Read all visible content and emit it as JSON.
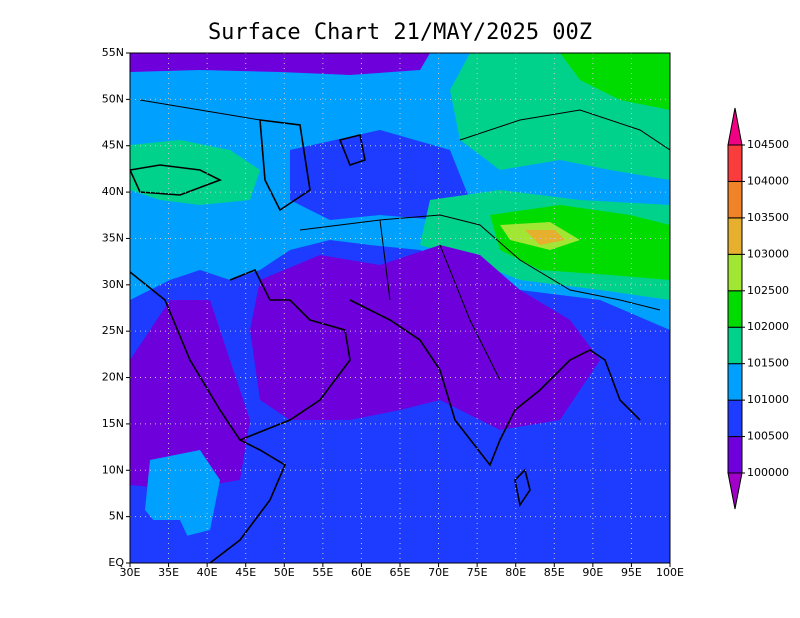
{
  "title": "Surface Chart 21/MAY/2025 00Z",
  "map": {
    "lat_labels": [
      "EQ",
      "5N",
      "10N",
      "15N",
      "20N",
      "25N",
      "30N",
      "35N",
      "40N",
      "45N",
      "50N",
      "55N"
    ],
    "lon_labels": [
      "30E",
      "35E",
      "40E",
      "45E",
      "50E",
      "55E",
      "60E",
      "65E",
      "70E",
      "75E",
      "80E",
      "85E",
      "90E",
      "95E",
      "100E"
    ]
  },
  "colorbar": {
    "levels": [
      100000,
      100500,
      101000,
      101500,
      102000,
      102500,
      103000,
      103500,
      104000,
      104500
    ],
    "colors": [
      "#a000c8",
      "#6e00dc",
      "#1e3cff",
      "#00a0ff",
      "#00d28c",
      "#00dc00",
      "#a0e632",
      "#e6af2d",
      "#f08228",
      "#fa3c3c",
      "#f00082"
    ]
  }
}
